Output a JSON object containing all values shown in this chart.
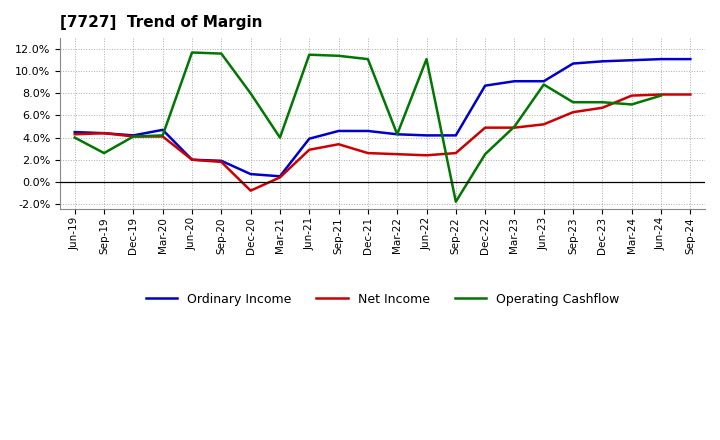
{
  "title": "[7727]  Trend of Margin",
  "x_labels": [
    "Jun-19",
    "Sep-19",
    "Dec-19",
    "Mar-20",
    "Jun-20",
    "Sep-20",
    "Dec-20",
    "Mar-21",
    "Jun-21",
    "Sep-21",
    "Dec-21",
    "Mar-22",
    "Jun-22",
    "Sep-22",
    "Dec-22",
    "Mar-23",
    "Jun-23",
    "Sep-23",
    "Dec-23",
    "Mar-24",
    "Jun-24",
    "Sep-24"
  ],
  "ordinary_income": [
    4.5,
    4.4,
    4.2,
    4.7,
    2.0,
    1.9,
    0.7,
    0.5,
    3.9,
    4.6,
    4.6,
    4.3,
    4.2,
    4.2,
    8.7,
    9.1,
    9.1,
    10.7,
    10.9,
    11.0,
    11.1,
    11.1
  ],
  "net_income": [
    4.3,
    4.4,
    4.1,
    4.1,
    2.0,
    1.8,
    -0.8,
    0.4,
    2.9,
    3.4,
    2.6,
    2.5,
    2.4,
    2.6,
    4.9,
    4.9,
    5.2,
    6.3,
    6.7,
    7.8,
    7.9,
    7.9
  ],
  "operating_cashflow": [
    4.0,
    2.6,
    4.1,
    4.2,
    11.7,
    11.6,
    8.0,
    4.0,
    11.5,
    11.4,
    11.1,
    4.3,
    11.1,
    -1.8,
    2.5,
    5.0,
    8.8,
    7.2,
    7.2,
    7.0,
    7.8,
    null
  ],
  "ylim": [
    -2.5,
    13.0
  ],
  "yticks": [
    -2.0,
    0.0,
    2.0,
    4.0,
    6.0,
    8.0,
    10.0,
    12.0
  ],
  "colors": {
    "ordinary_income": "#0000cc",
    "net_income": "#cc0000",
    "operating_cashflow": "#007700"
  },
  "background_color": "#ffffff",
  "grid_color": "#aaaaaa",
  "legend_labels": [
    "Ordinary Income",
    "Net Income",
    "Operating Cashflow"
  ]
}
